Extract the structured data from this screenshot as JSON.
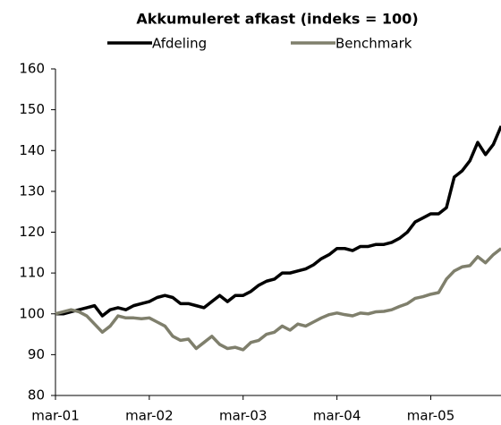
{
  "chart_data": {
    "type": "line",
    "title": "Akkumuleret afkast (indeks = 100)",
    "categories": [
      "mar-01",
      null,
      null,
      null,
      null,
      null,
      null,
      null,
      null,
      null,
      null,
      null,
      "mar-02",
      null,
      null,
      null,
      null,
      null,
      null,
      null,
      null,
      null,
      null,
      null,
      "mar-03",
      null,
      null,
      null,
      null,
      null,
      null,
      null,
      null,
      null,
      null,
      null,
      "mar-04",
      null,
      null,
      null,
      null,
      null,
      null,
      null,
      null,
      null,
      null,
      null,
      "mar-05",
      null,
      null,
      null,
      null,
      null,
      null,
      null,
      null,
      null
    ],
    "series": [
      {
        "name": "Afdeling",
        "color": "#000000",
        "values": [
          100,
          100,
          100.5,
          101,
          101.5,
          102,
          99.5,
          101,
          101.5,
          101,
          102,
          102.5,
          103,
          104,
          104.5,
          104,
          102.5,
          102.5,
          102,
          101.5,
          103,
          104.5,
          103,
          104.5,
          104.5,
          105.5,
          107,
          108,
          108.5,
          110,
          110,
          110.5,
          111,
          112,
          113.5,
          114.5,
          116,
          116,
          115.5,
          116.5,
          116.5,
          117,
          117,
          117.5,
          118.5,
          120,
          122.5,
          123.5,
          124.5,
          124.5,
          126,
          133.5,
          135,
          137.5,
          142,
          139,
          141.5,
          146
        ]
      },
      {
        "name": "Benchmark",
        "color": "#7f7f6c",
        "values": [
          100,
          100.5,
          101,
          100.5,
          99.5,
          97.5,
          95.5,
          97,
          99.5,
          99,
          99,
          98.8,
          99,
          98,
          97,
          94.5,
          93.5,
          93.8,
          91.5,
          93,
          94.5,
          92.5,
          91.5,
          91.8,
          91.2,
          93,
          93.5,
          95,
          95.5,
          97,
          96,
          97.5,
          97,
          98,
          99,
          99.8,
          100.2,
          99.8,
          99.5,
          100.2,
          100,
          100.5,
          100.6,
          101,
          101.8,
          102.5,
          103.8,
          104.2,
          104.8,
          105.2,
          108.5,
          110.5,
          111.5,
          111.8,
          114,
          112.5,
          114.5,
          116
        ]
      }
    ],
    "ylim": [
      80,
      160
    ],
    "yticks": [
      80,
      90,
      100,
      110,
      120,
      130,
      140,
      150,
      160
    ],
    "grid": false
  }
}
